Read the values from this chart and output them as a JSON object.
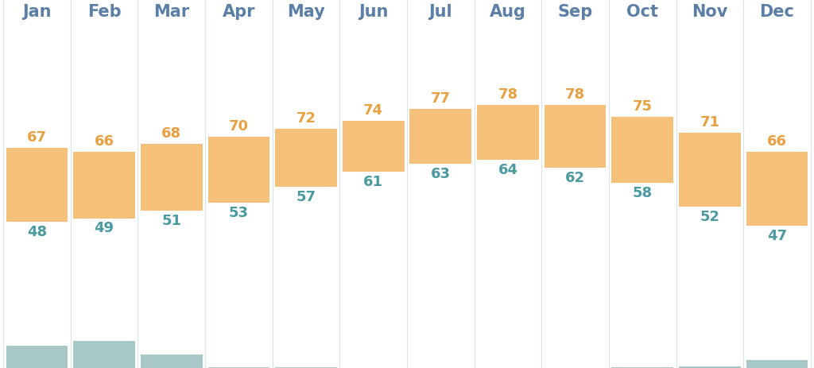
{
  "months": [
    "Jan",
    "Feb",
    "Mar",
    "Apr",
    "May",
    "Jun",
    "Jul",
    "Aug",
    "Sep",
    "Oct",
    "Nov",
    "Dec"
  ],
  "temp_high": [
    67,
    66,
    68,
    70,
    72,
    74,
    77,
    78,
    78,
    75,
    71,
    66
  ],
  "temp_low": [
    48,
    49,
    51,
    53,
    57,
    61,
    63,
    64,
    62,
    58,
    52,
    47
  ],
  "rainfall": [
    0.54,
    0.66,
    0.33,
    0.01,
    0.01,
    0,
    0,
    0,
    0,
    0.02,
    0.04,
    0.2
  ],
  "bar_color": "#F5C07A",
  "rain_color": "#A8C8C8",
  "month_color": "#5B7FA6",
  "high_color": "#E8A040",
  "low_color": "#4A9AA0",
  "rain_label_color": "#555555",
  "bg_color": "#FFFFFF",
  "sep_color": "#D8E4EC",
  "temp_ylim_min": 20,
  "temp_ylim_max": 105,
  "rain_ylim_min": 0,
  "rain_ylim_max": 0.9,
  "month_fontsize": 15,
  "temp_fontsize": 13,
  "rain_fontsize": 12
}
